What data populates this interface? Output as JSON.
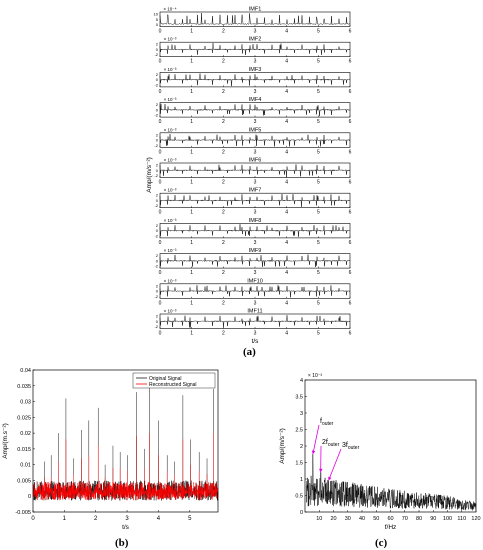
{
  "panel_labels": {
    "a": "(a)",
    "b": "(b)",
    "c": "(c)"
  },
  "chart_data": [
    {
      "id": "a",
      "type": "line",
      "title": "",
      "xlabel": "t/s",
      "ylabel": "Amp/(m/s⁻²)",
      "xlim": [
        0,
        6
      ],
      "xticks": [
        "0",
        "1",
        "2",
        "3",
        "4",
        "5",
        "6"
      ],
      "series_color": "#000000",
      "subplots": [
        {
          "name": "IMF1",
          "exponent": "× 10⁻⁴",
          "yticks": [
            "10",
            "5",
            "0"
          ]
        },
        {
          "name": "IMF2",
          "exponent": "× 10⁻³",
          "yticks": [
            "2",
            "0",
            "-2"
          ]
        },
        {
          "name": "IMF3",
          "exponent": "× 10⁻³",
          "yticks": [
            "2",
            "0",
            "-2"
          ]
        },
        {
          "name": "IMF4",
          "exponent": "× 10⁻³",
          "yticks": [
            "2",
            "0",
            "-2"
          ]
        },
        {
          "name": "IMF5",
          "exponent": "× 10⁻³",
          "yticks": [
            "2",
            "0",
            "-2"
          ]
        },
        {
          "name": "IMF6",
          "exponent": "× 10⁻³",
          "yticks": [
            "2",
            "0",
            "-2"
          ]
        },
        {
          "name": "IMF7",
          "exponent": "× 10⁻³",
          "yticks": [
            "2",
            "0",
            "-2"
          ]
        },
        {
          "name": "IMF8",
          "exponent": "× 10⁻³",
          "yticks": [
            "2",
            "0",
            "-2"
          ]
        },
        {
          "name": "IMF9",
          "exponent": "× 10⁻³",
          "yticks": [
            "2",
            "0",
            "-2"
          ]
        },
        {
          "name": "IMF10",
          "exponent": "× 10⁻³",
          "yticks": [
            "2",
            "0",
            "-2"
          ]
        },
        {
          "name": "IMF11",
          "exponent": "× 10⁻³",
          "yticks": [
            "2",
            "0",
            "-2"
          ]
        }
      ]
    },
    {
      "id": "b",
      "type": "line",
      "title": "",
      "xlabel": "t/s",
      "ylabel": "Amp/(m.s⁻²)",
      "xlim": [
        0,
        5.9
      ],
      "ylim": [
        -0.005,
        0.04
      ],
      "xticks": [
        0,
        1,
        2,
        3,
        4,
        5
      ],
      "yticks": [
        -0.005,
        0,
        0.005,
        0.01,
        0.015,
        0.02,
        0.025,
        0.03,
        0.035,
        0.04
      ],
      "ytick_labels": [
        "-0.005",
        "0",
        "0.005",
        "0.01",
        "0.015",
        "0.02",
        "0.025",
        "0.03",
        "0.035",
        "0.04"
      ],
      "legend_position": "top-right",
      "impact_peaks": [
        {
          "t": 0.37,
          "original": 0.011,
          "reconstructed": 0.006
        },
        {
          "t": 0.58,
          "original": 0.013,
          "reconstructed": 0.006
        },
        {
          "t": 0.82,
          "original": 0.02,
          "reconstructed": 0.011
        },
        {
          "t": 1.05,
          "original": 0.031,
          "reconstructed": 0.018
        },
        {
          "t": 1.3,
          "original": 0.012,
          "reconstructed": 0.007
        },
        {
          "t": 1.55,
          "original": 0.021,
          "reconstructed": 0.012
        },
        {
          "t": 1.78,
          "original": 0.024,
          "reconstructed": 0.013
        },
        {
          "t": 2.08,
          "original": 0.028,
          "reconstructed": 0.016
        },
        {
          "t": 2.3,
          "original": 0.01,
          "reconstructed": 0.006
        },
        {
          "t": 2.55,
          "original": 0.016,
          "reconstructed": 0.009
        },
        {
          "t": 2.78,
          "original": 0.014,
          "reconstructed": 0.009
        },
        {
          "t": 3.02,
          "original": 0.013,
          "reconstructed": 0.008
        },
        {
          "t": 3.3,
          "original": 0.033,
          "reconstructed": 0.019
        },
        {
          "t": 3.55,
          "original": 0.015,
          "reconstructed": 0.009
        },
        {
          "t": 3.72,
          "original": 0.035,
          "reconstructed": 0.02
        },
        {
          "t": 4.0,
          "original": 0.024,
          "reconstructed": 0.013
        },
        {
          "t": 4.28,
          "original": 0.013,
          "reconstructed": 0.008
        },
        {
          "t": 4.52,
          "original": 0.011,
          "reconstructed": 0.007
        },
        {
          "t": 4.78,
          "original": 0.032,
          "reconstructed": 0.018
        },
        {
          "t": 5.02,
          "original": 0.018,
          "reconstructed": 0.01
        },
        {
          "t": 5.3,
          "original": 0.014,
          "reconstructed": 0.008
        },
        {
          "t": 5.55,
          "original": 0.012,
          "reconstructed": 0.007
        },
        {
          "t": 5.75,
          "original": 0.034,
          "reconstructed": 0.02
        }
      ],
      "series": [
        {
          "name": "Original Signal",
          "color": "#1a1a1a"
        },
        {
          "name": "Reconstructed Signal",
          "color": "#ff0000"
        }
      ]
    },
    {
      "id": "c",
      "type": "line",
      "title": "",
      "xlabel": "f/Hz",
      "ylabel": "Amp/(m/s⁻²)",
      "exponent": "× 10⁻³",
      "xlim": [
        0,
        120
      ],
      "ylim": [
        0,
        4
      ],
      "xticks": [
        10,
        20,
        30,
        40,
        50,
        60,
        70,
        80,
        90,
        100,
        110,
        120
      ],
      "yticks": [
        0,
        0.5,
        1,
        1.5,
        2,
        2.5,
        3,
        3.5,
        4
      ],
      "ytick_labels": [
        "0",
        "0.5",
        "1",
        "1.5",
        "2",
        "2.5",
        "3",
        "3.5",
        "4"
      ],
      "series_color": "#000000",
      "arrow_color": "#e000e0",
      "spectrum_envelope": [
        {
          "f": 5,
          "amp": 1.1
        },
        {
          "f": 20,
          "amp": 1.0
        },
        {
          "f": 40,
          "amp": 0.85
        },
        {
          "f": 60,
          "amp": 0.7
        },
        {
          "f": 80,
          "amp": 0.6
        },
        {
          "f": 100,
          "amp": 0.5
        },
        {
          "f": 120,
          "amp": 0.3
        }
      ],
      "annotations": [
        {
          "base": "f",
          "sub": "outer",
          "target_f": 5.5,
          "target_amp": 1.75
        },
        {
          "base": "2f",
          "sub": "outer",
          "target_f": 11,
          "target_amp": 1.2
        },
        {
          "base": "3f",
          "sub": "outer",
          "target_f": 16.5,
          "target_amp": 0.95
        }
      ]
    }
  ]
}
